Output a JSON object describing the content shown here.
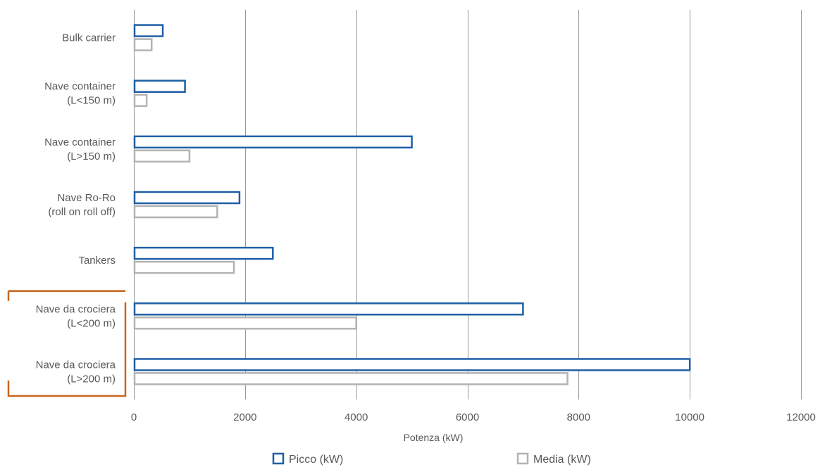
{
  "chart_data": {
    "type": "bar",
    "orientation": "horizontal",
    "categories": [
      [
        "Bulk carrier"
      ],
      [
        "Nave container",
        "(L<150 m)"
      ],
      [
        "Nave container",
        "(L>150 m)"
      ],
      [
        "Nave Ro-Ro",
        "(roll on roll off)"
      ],
      [
        "Tankers"
      ],
      [
        "Nave da crociera",
        "(L<200 m)"
      ],
      [
        "Nave da crociera",
        "(L>200 m)"
      ]
    ],
    "series": [
      {
        "name": "Picco (kW)",
        "color": "#1f5fa6",
        "values": [
          520,
          920,
          5000,
          1900,
          2500,
          7000,
          10000
        ]
      },
      {
        "name": "Media (kW)",
        "color": "#b3b3b3",
        "values": [
          320,
          230,
          1000,
          1500,
          1800,
          4000,
          7800
        ]
      }
    ],
    "xlabel": "Potenza (kW)",
    "xlim": [
      0,
      12000
    ],
    "xticks": [
      0,
      2000,
      4000,
      6000,
      8000,
      10000,
      12000
    ],
    "grid": "vertical",
    "legend_position": "bottom",
    "highlight_bracket_color": "#c8651b",
    "highlighted_categories": [
      5,
      6
    ]
  }
}
